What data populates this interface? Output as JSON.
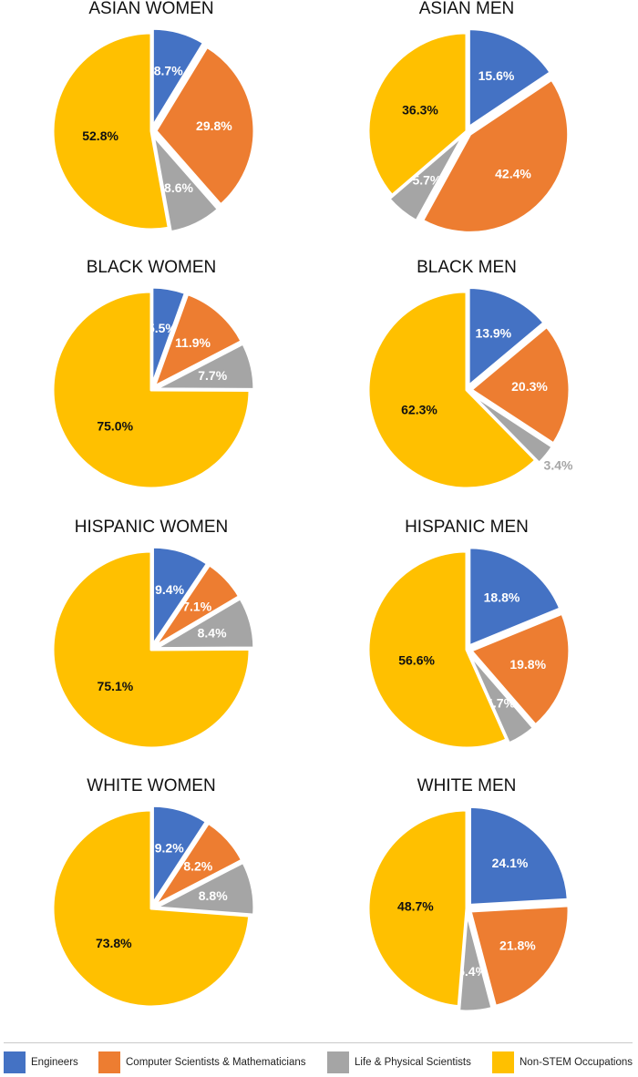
{
  "categories": [
    {
      "key": "engineers",
      "label": "Engineers",
      "color": "#4472c4"
    },
    {
      "key": "cs_math",
      "label": "Computer Scientists & Mathematicians",
      "color": "#ed7d31"
    },
    {
      "key": "life_phys",
      "label": "Life & Physical Scientists",
      "color": "#a5a5a5"
    },
    {
      "key": "non_stem",
      "label": "Non-STEM Occupations",
      "color": "#ffc000"
    }
  ],
  "chart_data": [
    {
      "type": "pie",
      "title": "ASIAN WOMEN",
      "labels": [
        "Engineers",
        "Computer Scientists & Mathematicians",
        "Life & Physical Scientists",
        "Non-STEM Occupations"
      ],
      "values": [
        8.7,
        29.8,
        8.6,
        52.8
      ],
      "value_labels": [
        "8.7%",
        "29.8%",
        "8.6%",
        "52.8%"
      ]
    },
    {
      "type": "pie",
      "title": "ASIAN MEN",
      "labels": [
        "Engineers",
        "Computer Scientists & Mathematicians",
        "Life & Physical Scientists",
        "Non-STEM Occupations"
      ],
      "values": [
        15.6,
        42.4,
        5.7,
        36.3
      ],
      "value_labels": [
        "15.6%",
        "42.4%",
        "5.7%",
        "36.3%"
      ]
    },
    {
      "type": "pie",
      "title": "BLACK WOMEN",
      "labels": [
        "Engineers",
        "Computer Scientists & Mathematicians",
        "Life & Physical Scientists",
        "Non-STEM Occupations"
      ],
      "values": [
        5.5,
        11.9,
        7.7,
        75.0
      ],
      "value_labels": [
        "5.5%",
        "11.9%",
        "7.7%",
        "75.0%"
      ]
    },
    {
      "type": "pie",
      "title": "BLACK MEN",
      "labels": [
        "Engineers",
        "Computer Scientists & Mathematicians",
        "Life & Physical Scientists",
        "Non-STEM Occupations"
      ],
      "values": [
        13.9,
        20.3,
        3.4,
        62.3
      ],
      "value_labels": [
        "13.9%",
        "20.3%",
        "3.4%",
        "62.3%"
      ]
    },
    {
      "type": "pie",
      "title": "HISPANIC WOMEN",
      "labels": [
        "Engineers",
        "Computer Scientists & Mathematicians",
        "Life & Physical Scientists",
        "Non-STEM Occupations"
      ],
      "values": [
        9.4,
        7.1,
        8.4,
        75.1
      ],
      "value_labels": [
        "9.4%",
        "7.1%",
        "8.4%",
        "75.1%"
      ]
    },
    {
      "type": "pie",
      "title": "HISPANIC MEN",
      "labels": [
        "Engineers",
        "Computer Scientists & Mathematicians",
        "Life & Physical Scientists",
        "Non-STEM Occupations"
      ],
      "values": [
        18.8,
        19.8,
        4.7,
        56.6
      ],
      "value_labels": [
        "18.8%",
        "19.8%",
        "4.7%",
        "56.6%"
      ]
    },
    {
      "type": "pie",
      "title": "WHITE WOMEN",
      "labels": [
        "Engineers",
        "Computer Scientists & Mathematicians",
        "Life & Physical Scientists",
        "Non-STEM Occupations"
      ],
      "values": [
        9.2,
        8.2,
        8.8,
        73.8
      ],
      "value_labels": [
        "9.2%",
        "8.2%",
        "8.8%",
        "73.8%"
      ]
    },
    {
      "type": "pie",
      "title": "WHITE MEN",
      "labels": [
        "Engineers",
        "Computer Scientists & Mathematicians",
        "Life & Physical Scientists",
        "Non-STEM Occupations"
      ],
      "values": [
        24.1,
        21.8,
        5.4,
        48.7
      ],
      "value_labels": [
        "24.1%",
        "21.8%",
        "5.4%",
        "48.7%"
      ]
    }
  ]
}
